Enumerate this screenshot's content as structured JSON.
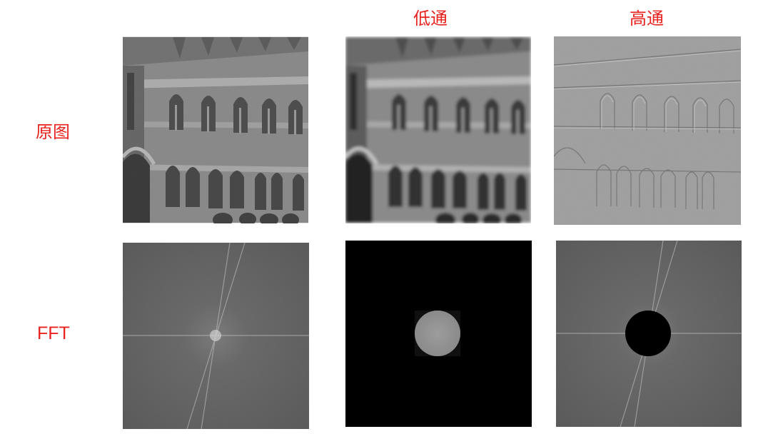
{
  "column_labels": {
    "low_pass": "低通",
    "high_pass": "高通"
  },
  "row_labels": {
    "original": "原图",
    "fft": "FFT"
  },
  "colors": {
    "label": "#e8231f",
    "background": "#ffffff"
  }
}
